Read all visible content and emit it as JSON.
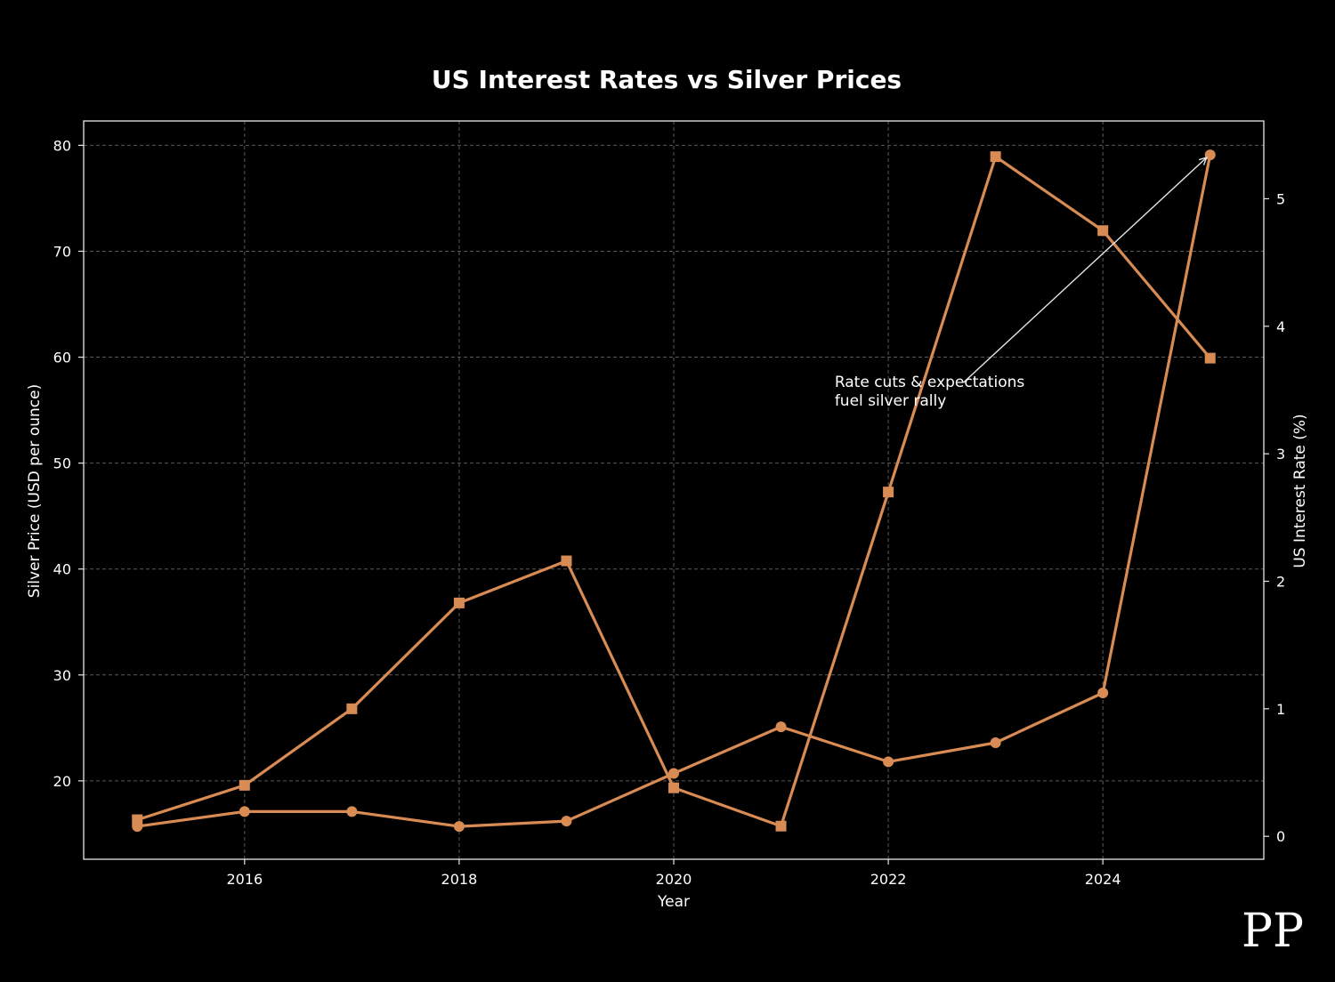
{
  "logo_text": "PP",
  "colors": {
    "background": "#000000",
    "series": "#d98b54",
    "grid": "#5a5a5a",
    "axis": "#e6e6e6",
    "text": "#ffffff"
  },
  "chart_data": {
    "type": "line",
    "title": "US Interest Rates vs Silver Prices",
    "xlabel": "Year",
    "ylabel": "Silver Price (USD per ounce)",
    "y2label": "US Interest Rate (%)",
    "xlim": [
      2014.5,
      2025.5
    ],
    "ylim": [
      12.6,
      82.3
    ],
    "y2lim": [
      -0.18,
      5.61
    ],
    "grid": true,
    "x": [
      2015,
      2016,
      2017,
      2018,
      2019,
      2020,
      2021,
      2022,
      2023,
      2024,
      2025
    ],
    "xticks": [
      2016,
      2018,
      2020,
      2022,
      2024
    ],
    "yticks": [
      20,
      30,
      40,
      50,
      60,
      70,
      80
    ],
    "y2ticks": [
      0,
      1,
      2,
      3,
      4,
      5
    ],
    "series": [
      {
        "name": "Silver Price",
        "axis": "left",
        "marker": "circle",
        "values": [
          15.7,
          17.1,
          17.1,
          15.7,
          16.2,
          20.7,
          25.1,
          21.8,
          23.6,
          28.3,
          79.1
        ]
      },
      {
        "name": "US Interest Rate",
        "axis": "right",
        "marker": "square",
        "values": [
          0.13,
          0.4,
          1.0,
          1.83,
          2.16,
          0.38,
          0.08,
          2.7,
          5.33,
          4.75,
          3.75
        ]
      }
    ],
    "annotation": {
      "lines": [
        "Rate cuts & expectations",
        "fuel silver rally"
      ],
      "text_x": 2021.5,
      "text_y": 57.2,
      "arrow_from_x": 2022.7,
      "arrow_from_y": 57.6,
      "arrow_to_x": 2025,
      "arrow_to_y": 79.1
    }
  }
}
